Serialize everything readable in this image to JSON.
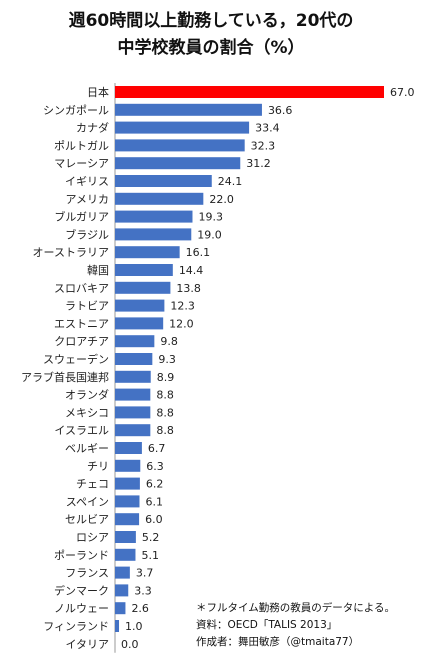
{
  "title_line1": "週60時間以上勤務している，20代の",
  "title_line2": "中学校教員の割合（%）",
  "notes": [
    "＊フルタイム勤務の教員のデータによる。",
    "資料：OECD「TALIS 2013」",
    "作成者：舞田敏彦（@tmaita77）"
  ],
  "colors": {
    "highlight": "#ff0000",
    "bar": "#4472c4"
  },
  "chart_data": {
    "type": "bar",
    "orientation": "horizontal",
    "title": "週60時間以上勤務している，20代の中学校教員の割合（%）",
    "categories": [
      "日本",
      "シンガポール",
      "カナダ",
      "ポルトガル",
      "マレーシア",
      "イギリス",
      "アメリカ",
      "ブルガリア",
      "ブラジル",
      "オーストラリア",
      "韓国",
      "スロバキア",
      "ラトビア",
      "エストニア",
      "クロアチア",
      "スウェーデン",
      "アラブ首長国連邦",
      "オランダ",
      "メキシコ",
      "イスラエル",
      "ベルギー",
      "チリ",
      "チェコ",
      "スペイン",
      "セルビア",
      "ロシア",
      "ポーランド",
      "フランス",
      "デンマーク",
      "ノルウェー",
      "フィンランド",
      "イタリア"
    ],
    "values": [
      67.0,
      36.6,
      33.4,
      32.3,
      31.2,
      24.1,
      22.0,
      19.3,
      19.0,
      16.1,
      14.4,
      13.8,
      12.3,
      12.0,
      9.8,
      9.3,
      8.9,
      8.8,
      8.8,
      8.8,
      6.7,
      6.3,
      6.2,
      6.1,
      6.0,
      5.2,
      5.1,
      3.7,
      3.3,
      2.6,
      1.0,
      0.0
    ],
    "value_labels": [
      "67.0",
      "36.6",
      "33.4",
      "32.3",
      "31.2",
      "24.1",
      "22.0",
      "19.3",
      "19.0",
      "16.1",
      "14.4",
      "13.8",
      "12.3",
      "12.0",
      "9.8",
      "9.3",
      "8.9",
      "8.8",
      "8.8",
      "8.8",
      "6.7",
      "6.3",
      "6.2",
      "6.1",
      "6.0",
      "5.2",
      "5.1",
      "3.7",
      "3.3",
      "2.6",
      "1.0",
      "0.0"
    ],
    "highlight_category": "日本",
    "xlim": [
      0,
      67
    ]
  }
}
